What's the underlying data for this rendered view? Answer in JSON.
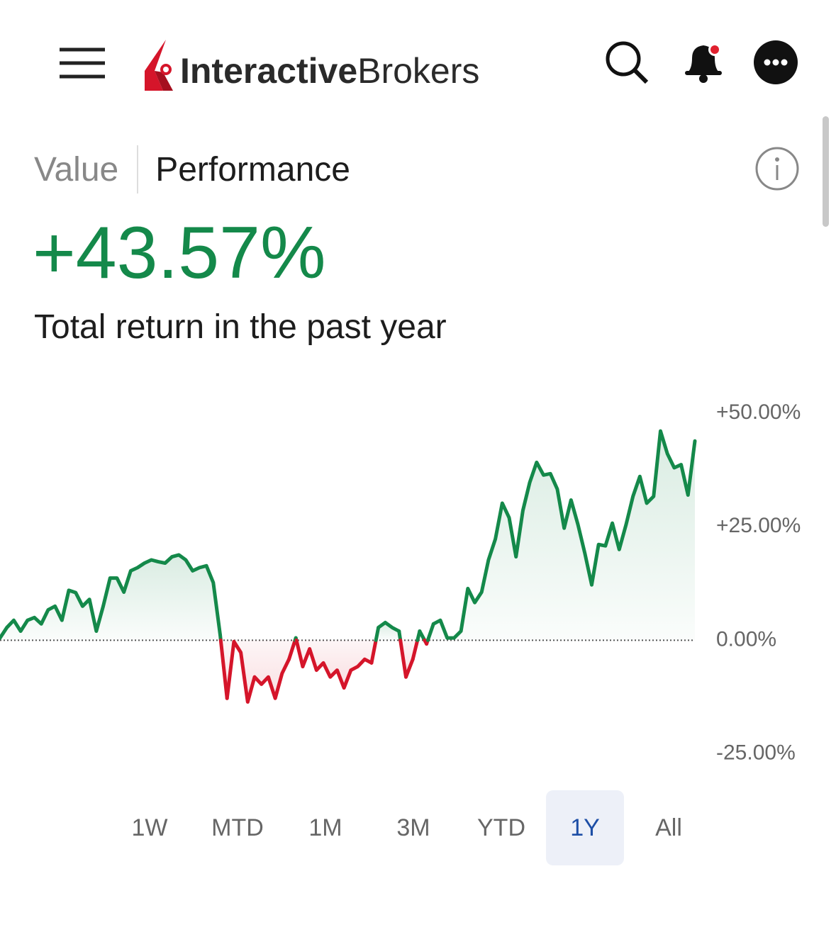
{
  "header": {
    "logo": {
      "bold": "Interactive",
      "regular": "Brokers"
    }
  },
  "tabs": [
    "Value",
    "Performance"
  ],
  "active_tab": 1,
  "headline": {
    "value": "+43.57%",
    "caption": "Total return in the past year"
  },
  "chart_data": {
    "type": "line",
    "values": [
      0.5,
      2.8,
      4.4,
      2,
      4.4,
      5,
      3.6,
      6.7,
      7.5,
      4.4,
      11,
      10.5,
      7.5,
      9,
      2,
      7.5,
      13.7,
      13.7,
      10.6,
      15.3,
      16,
      17,
      17.7,
      17.3,
      17,
      18.4,
      18.8,
      17.7,
      15.3,
      16,
      16.4,
      12.7,
      1.2,
      -12.8,
      -0.3,
      -2.7,
      -13.6,
      -8.1,
      -9.7,
      -8.1,
      -12.8,
      -7.3,
      -4.2,
      0.5,
      -5.8,
      -1.9,
      -6.6,
      -5,
      -8.1,
      -6.6,
      -10.5,
      -6.6,
      -5.8,
      -4.2,
      -5,
      2.8,
      3.9,
      2.8,
      2,
      -8.1,
      -4.2,
      2,
      -0.8,
      3.6,
      4.4,
      0.5,
      0.5,
      2,
      11.4,
      8.3,
      10.6,
      17.7,
      22.3,
      30.2,
      27,
      18.4,
      28.6,
      34.8,
      39.2,
      36.4,
      36.7,
      33.3,
      24.7,
      30.9,
      25.5,
      19.2,
      12.2,
      21.1,
      20.8,
      25.8,
      20,
      25.5,
      31.7,
      36.1,
      30.2,
      31.7,
      46.1,
      41.1,
      38,
      38.7,
      32,
      43.9
    ],
    "color": "#14894a",
    "negative_color": "#d5152a",
    "ylim": [
      -29,
      53
    ],
    "yticks": [
      {
        "value": 50,
        "label": "+50.00%"
      },
      {
        "value": 25,
        "label": "+25.00%"
      },
      {
        "value": 0,
        "label": "0.00%"
      },
      {
        "value": -25,
        "label": "-25.00%"
      }
    ]
  },
  "ranges": [
    "1W",
    "MTD",
    "1M",
    "3M",
    "YTD",
    "1Y",
    "All"
  ],
  "selected_range": 5
}
